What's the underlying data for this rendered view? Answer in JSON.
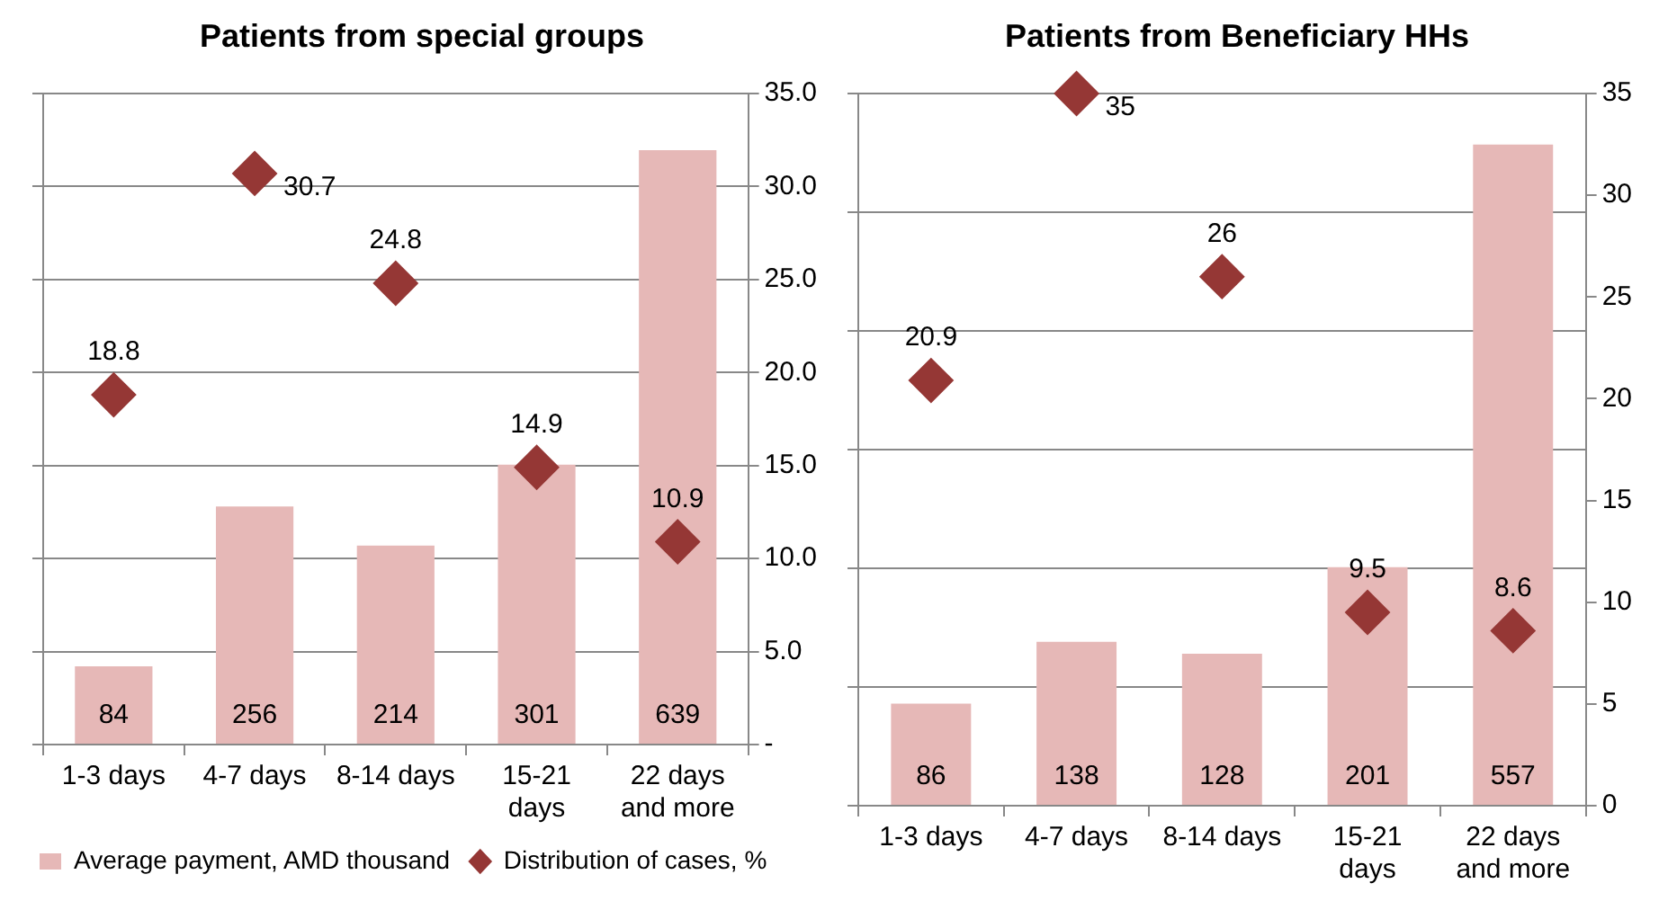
{
  "chart_data": [
    {
      "type": "bar",
      "title": "Patients from special groups",
      "categories": [
        "1-3 days",
        "4-7 days",
        "8-14 days",
        "15-21 days",
        "22 days and more"
      ],
      "series": [
        {
          "name": "Average payment, AMD thousand",
          "color": "#e6b8b7",
          "values": [
            84,
            256,
            214,
            301,
            639
          ]
        },
        {
          "name": "Distribution of cases, %",
          "type": "scatter",
          "color": "#953735",
          "values": [
            18.8,
            30.7,
            24.8,
            14.9,
            10.9
          ],
          "axis": "y2"
        }
      ],
      "ylim": [
        0,
        700
      ],
      "yticks": [
        {
          "value": 0,
          "label": null
        },
        {
          "value": 100,
          "label": null
        },
        {
          "value": 200,
          "label": null
        },
        {
          "value": 300,
          "label": null
        },
        {
          "value": 400,
          "label": null
        },
        {
          "value": 500,
          "label": null
        },
        {
          "value": 600,
          "label": null
        },
        {
          "value": 700,
          "label": null
        }
      ],
      "y2lim": [
        0,
        35
      ],
      "y2ticks": [
        {
          "value": 0,
          "label": "-"
        },
        {
          "value": 5,
          "label": "5.0"
        },
        {
          "value": 10,
          "label": "10.0"
        },
        {
          "value": 15,
          "label": "15.0"
        },
        {
          "value": 20,
          "label": "20.0"
        },
        {
          "value": 25,
          "label": "25.0"
        },
        {
          "value": 30,
          "label": "30.0"
        },
        {
          "value": 35,
          "label": "35.0"
        }
      ],
      "grid": "y",
      "legend": "bottom",
      "marker": "diamond",
      "data_labels": true
    },
    {
      "type": "bar",
      "title": "Patients from Beneficiary HHs",
      "categories": [
        "1-3 days",
        "4-7 days",
        "8-14 days",
        "15-21 days",
        "22 days and more"
      ],
      "series": [
        {
          "color": "#e6b8b7",
          "values": [
            86,
            138,
            128,
            201,
            557
          ]
        },
        {
          "type": "scatter",
          "color": "#953735",
          "values": [
            20.9,
            35,
            26,
            9.5,
            8.6
          ],
          "axis": "y2"
        }
      ],
      "ylim": [
        0,
        600
      ],
      "yticks": [
        {
          "value": 0,
          "label": null
        },
        {
          "value": 100,
          "label": null
        },
        {
          "value": 200,
          "label": null
        },
        {
          "value": 300,
          "label": null
        },
        {
          "value": 400,
          "label": null
        },
        {
          "value": 500,
          "label": null
        },
        {
          "value": 600,
          "label": null
        }
      ],
      "y2lim": [
        0,
        35
      ],
      "y2ticks": [
        0,
        5,
        10,
        15,
        20,
        25,
        30,
        35
      ],
      "grid": "y",
      "marker": "diamond",
      "data_labels": true
    }
  ]
}
